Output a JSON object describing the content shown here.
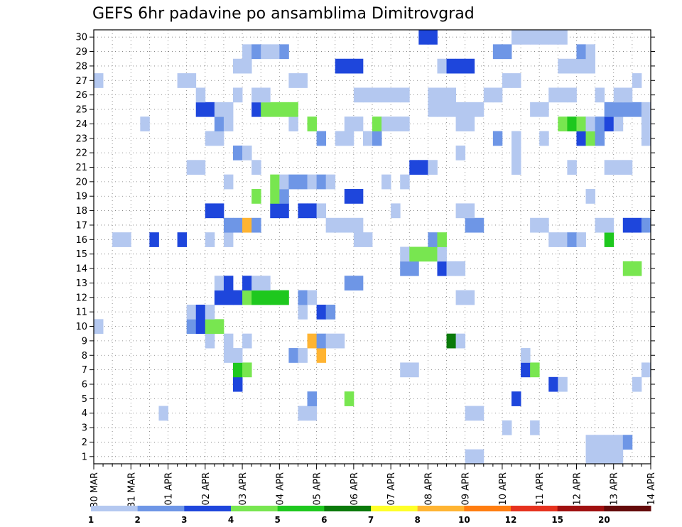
{
  "chart_data": {
    "type": "heatmap",
    "title": "GEFS 6hr padavine po ansamblima Dimitrovgrad",
    "x_tick_labels": [
      "30 MAR",
      "31 MAR",
      "01 APR",
      "02 APR",
      "03 APR",
      "04 APR",
      "05 APR",
      "06 APR",
      "07 APR",
      "08 APR",
      "09 APR",
      "10 APR",
      "11 APR",
      "12 APR",
      "13 APR",
      "14 APR"
    ],
    "y_tick_labels": [
      "1",
      "2",
      "3",
      "4",
      "5",
      "6",
      "7",
      "8",
      "9",
      "10",
      "11",
      "12",
      "13",
      "14",
      "15",
      "16",
      "17",
      "18",
      "19",
      "20",
      "21",
      "22",
      "23",
      "24",
      "25",
      "26",
      "27",
      "28",
      "29",
      "30"
    ],
    "x_range_steps": [
      0,
      60
    ],
    "steps_per_day": 4,
    "y_range": [
      0,
      30
    ],
    "grid": "dotted",
    "colorbar_position": "bottom",
    "colorbar_colors": [
      "#b4c8f0",
      "#6e96e6",
      "#1e46dc",
      "#78e650",
      "#1ec81e",
      "#0a7a0a",
      "#ffff28",
      "#ffb432",
      "#ff7d10",
      "#e6321e",
      "#a01010",
      "#640a0a"
    ],
    "colorbar_labels": [
      "1",
      "2",
      "3",
      "4",
      "5",
      "6",
      "7",
      "8",
      "10",
      "12",
      "15",
      "20"
    ],
    "cells": [
      [
        40,
        0,
        1
      ],
      [
        41,
        0,
        1
      ],
      [
        53,
        0,
        1
      ],
      [
        54,
        0,
        1
      ],
      [
        55,
        0,
        1
      ],
      [
        56,
        0,
        1
      ],
      [
        53,
        1,
        1
      ],
      [
        54,
        1,
        1
      ],
      [
        55,
        1,
        1
      ],
      [
        56,
        1,
        1
      ],
      [
        57,
        1,
        2
      ],
      [
        44,
        2,
        1
      ],
      [
        47,
        2,
        1
      ],
      [
        7,
        3,
        1
      ],
      [
        22,
        3,
        1
      ],
      [
        23,
        3,
        1
      ],
      [
        40,
        3,
        1
      ],
      [
        41,
        3,
        1
      ],
      [
        23,
        4,
        2
      ],
      [
        27,
        4,
        4
      ],
      [
        45,
        4,
        3
      ],
      [
        15,
        5,
        3
      ],
      [
        49,
        5,
        3
      ],
      [
        50,
        5,
        1
      ],
      [
        58,
        5,
        1
      ],
      [
        15,
        6,
        5
      ],
      [
        16,
        6,
        4
      ],
      [
        33,
        6,
        1
      ],
      [
        34,
        6,
        1
      ],
      [
        46,
        6,
        3
      ],
      [
        47,
        6,
        4
      ],
      [
        59,
        6,
        1
      ],
      [
        14,
        7,
        1
      ],
      [
        15,
        7,
        1
      ],
      [
        21,
        7,
        2
      ],
      [
        22,
        7,
        1
      ],
      [
        24,
        7,
        8
      ],
      [
        46,
        7,
        1
      ],
      [
        12,
        8,
        1
      ],
      [
        14,
        8,
        1
      ],
      [
        16,
        8,
        1
      ],
      [
        23,
        8,
        8
      ],
      [
        24,
        8,
        2
      ],
      [
        25,
        8,
        1
      ],
      [
        26,
        8,
        1
      ],
      [
        38,
        8,
        6
      ],
      [
        39,
        8,
        1
      ],
      [
        0,
        9,
        1
      ],
      [
        10,
        9,
        2
      ],
      [
        11,
        9,
        3
      ],
      [
        12,
        9,
        4
      ],
      [
        13,
        9,
        4
      ],
      [
        10,
        10,
        1
      ],
      [
        11,
        10,
        3
      ],
      [
        12,
        10,
        1
      ],
      [
        22,
        10,
        1
      ],
      [
        24,
        10,
        3
      ],
      [
        25,
        10,
        2
      ],
      [
        13,
        11,
        3
      ],
      [
        14,
        11,
        3
      ],
      [
        15,
        11,
        3
      ],
      [
        16,
        11,
        4
      ],
      [
        17,
        11,
        5
      ],
      [
        18,
        11,
        5
      ],
      [
        19,
        11,
        5
      ],
      [
        20,
        11,
        5
      ],
      [
        22,
        11,
        2
      ],
      [
        23,
        11,
        1
      ],
      [
        39,
        11,
        1
      ],
      [
        40,
        11,
        1
      ],
      [
        13,
        12,
        1
      ],
      [
        14,
        12,
        3
      ],
      [
        16,
        12,
        3
      ],
      [
        17,
        12,
        1
      ],
      [
        18,
        12,
        1
      ],
      [
        27,
        12,
        2
      ],
      [
        28,
        12,
        2
      ],
      [
        33,
        13,
        2
      ],
      [
        34,
        13,
        2
      ],
      [
        37,
        13,
        3
      ],
      [
        38,
        13,
        1
      ],
      [
        39,
        13,
        1
      ],
      [
        57,
        13,
        4
      ],
      [
        58,
        13,
        4
      ],
      [
        33,
        14,
        1
      ],
      [
        34,
        14,
        4
      ],
      [
        35,
        14,
        4
      ],
      [
        36,
        14,
        4
      ],
      [
        37,
        14,
        1
      ],
      [
        2,
        15,
        1
      ],
      [
        3,
        15,
        1
      ],
      [
        6,
        15,
        3
      ],
      [
        9,
        15,
        3
      ],
      [
        12,
        15,
        1
      ],
      [
        14,
        15,
        1
      ],
      [
        28,
        15,
        1
      ],
      [
        29,
        15,
        1
      ],
      [
        36,
        15,
        2
      ],
      [
        37,
        15,
        4
      ],
      [
        49,
        15,
        1
      ],
      [
        50,
        15,
        1
      ],
      [
        51,
        15,
        2
      ],
      [
        52,
        15,
        1
      ],
      [
        55,
        15,
        5
      ],
      [
        14,
        16,
        2
      ],
      [
        15,
        16,
        2
      ],
      [
        16,
        16,
        8
      ],
      [
        17,
        16,
        2
      ],
      [
        25,
        16,
        1
      ],
      [
        26,
        16,
        1
      ],
      [
        27,
        16,
        1
      ],
      [
        28,
        16,
        1
      ],
      [
        40,
        16,
        2
      ],
      [
        41,
        16,
        2
      ],
      [
        47,
        16,
        1
      ],
      [
        48,
        16,
        1
      ],
      [
        54,
        16,
        1
      ],
      [
        55,
        16,
        1
      ],
      [
        57,
        16,
        3
      ],
      [
        58,
        16,
        3
      ],
      [
        59,
        16,
        2
      ],
      [
        12,
        17,
        3
      ],
      [
        13,
        17,
        3
      ],
      [
        19,
        17,
        3
      ],
      [
        20,
        17,
        3
      ],
      [
        22,
        17,
        3
      ],
      [
        23,
        17,
        3
      ],
      [
        24,
        17,
        1
      ],
      [
        32,
        17,
        1
      ],
      [
        39,
        17,
        1
      ],
      [
        40,
        17,
        1
      ],
      [
        17,
        18,
        4
      ],
      [
        19,
        18,
        4
      ],
      [
        20,
        18,
        2
      ],
      [
        27,
        18,
        3
      ],
      [
        28,
        18,
        3
      ],
      [
        53,
        18,
        1
      ],
      [
        14,
        19,
        1
      ],
      [
        19,
        19,
        4
      ],
      [
        20,
        19,
        1
      ],
      [
        21,
        19,
        2
      ],
      [
        22,
        19,
        2
      ],
      [
        23,
        19,
        1
      ],
      [
        24,
        19,
        2
      ],
      [
        25,
        19,
        1
      ],
      [
        31,
        19,
        1
      ],
      [
        33,
        19,
        1
      ],
      [
        10,
        20,
        1
      ],
      [
        11,
        20,
        1
      ],
      [
        17,
        20,
        1
      ],
      [
        34,
        20,
        3
      ],
      [
        35,
        20,
        3
      ],
      [
        36,
        20,
        1
      ],
      [
        45,
        20,
        1
      ],
      [
        51,
        20,
        1
      ],
      [
        55,
        20,
        1
      ],
      [
        56,
        20,
        1
      ],
      [
        57,
        20,
        1
      ],
      [
        15,
        21,
        2
      ],
      [
        16,
        21,
        1
      ],
      [
        39,
        21,
        1
      ],
      [
        45,
        21,
        1
      ],
      [
        12,
        22,
        1
      ],
      [
        13,
        22,
        1
      ],
      [
        24,
        22,
        2
      ],
      [
        26,
        22,
        1
      ],
      [
        27,
        22,
        1
      ],
      [
        29,
        22,
        1
      ],
      [
        30,
        22,
        2
      ],
      [
        43,
        22,
        2
      ],
      [
        45,
        22,
        1
      ],
      [
        48,
        22,
        1
      ],
      [
        52,
        22,
        3
      ],
      [
        53,
        22,
        4
      ],
      [
        54,
        22,
        2
      ],
      [
        59,
        22,
        1
      ],
      [
        5,
        23,
        1
      ],
      [
        13,
        23,
        2
      ],
      [
        14,
        23,
        1
      ],
      [
        21,
        23,
        1
      ],
      [
        23,
        23,
        4
      ],
      [
        27,
        23,
        1
      ],
      [
        28,
        23,
        1
      ],
      [
        30,
        23,
        4
      ],
      [
        31,
        23,
        1
      ],
      [
        32,
        23,
        1
      ],
      [
        33,
        23,
        1
      ],
      [
        39,
        23,
        1
      ],
      [
        40,
        23,
        1
      ],
      [
        50,
        23,
        4
      ],
      [
        51,
        23,
        5
      ],
      [
        52,
        23,
        4
      ],
      [
        53,
        23,
        1
      ],
      [
        54,
        23,
        2
      ],
      [
        55,
        23,
        3
      ],
      [
        56,
        23,
        1
      ],
      [
        59,
        23,
        1
      ],
      [
        11,
        24,
        3
      ],
      [
        12,
        24,
        3
      ],
      [
        13,
        24,
        1
      ],
      [
        14,
        24,
        1
      ],
      [
        17,
        24,
        3
      ],
      [
        18,
        24,
        4
      ],
      [
        19,
        24,
        4
      ],
      [
        20,
        24,
        4
      ],
      [
        21,
        24,
        4
      ],
      [
        36,
        24,
        1
      ],
      [
        37,
        24,
        1
      ],
      [
        38,
        24,
        1
      ],
      [
        39,
        24,
        1
      ],
      [
        40,
        24,
        1
      ],
      [
        41,
        24,
        1
      ],
      [
        47,
        24,
        1
      ],
      [
        48,
        24,
        1
      ],
      [
        55,
        24,
        2
      ],
      [
        56,
        24,
        2
      ],
      [
        57,
        24,
        2
      ],
      [
        58,
        24,
        2
      ],
      [
        59,
        24,
        1
      ],
      [
        11,
        25,
        1
      ],
      [
        15,
        25,
        1
      ],
      [
        17,
        25,
        1
      ],
      [
        18,
        25,
        1
      ],
      [
        28,
        25,
        1
      ],
      [
        29,
        25,
        1
      ],
      [
        30,
        25,
        1
      ],
      [
        31,
        25,
        1
      ],
      [
        32,
        25,
        1
      ],
      [
        33,
        25,
        1
      ],
      [
        36,
        25,
        1
      ],
      [
        37,
        25,
        1
      ],
      [
        38,
        25,
        1
      ],
      [
        42,
        25,
        1
      ],
      [
        43,
        25,
        1
      ],
      [
        49,
        25,
        1
      ],
      [
        50,
        25,
        1
      ],
      [
        51,
        25,
        1
      ],
      [
        54,
        25,
        1
      ],
      [
        56,
        25,
        1
      ],
      [
        57,
        25,
        1
      ],
      [
        0,
        26,
        1
      ],
      [
        9,
        26,
        1
      ],
      [
        10,
        26,
        1
      ],
      [
        21,
        26,
        1
      ],
      [
        22,
        26,
        1
      ],
      [
        44,
        26,
        1
      ],
      [
        45,
        26,
        1
      ],
      [
        58,
        26,
        1
      ],
      [
        15,
        27,
        1
      ],
      [
        16,
        27,
        1
      ],
      [
        26,
        27,
        3
      ],
      [
        27,
        27,
        3
      ],
      [
        28,
        27,
        3
      ],
      [
        37,
        27,
        1
      ],
      [
        38,
        27,
        3
      ],
      [
        39,
        27,
        3
      ],
      [
        40,
        27,
        3
      ],
      [
        50,
        27,
        1
      ],
      [
        51,
        27,
        1
      ],
      [
        52,
        27,
        1
      ],
      [
        53,
        27,
        1
      ],
      [
        16,
        28,
        1
      ],
      [
        17,
        28,
        2
      ],
      [
        18,
        28,
        1
      ],
      [
        19,
        28,
        1
      ],
      [
        20,
        28,
        2
      ],
      [
        43,
        28,
        2
      ],
      [
        44,
        28,
        2
      ],
      [
        52,
        28,
        2
      ],
      [
        53,
        28,
        1
      ],
      [
        35,
        29,
        3
      ],
      [
        36,
        29,
        3
      ],
      [
        45,
        29,
        1
      ],
      [
        46,
        29,
        1
      ],
      [
        47,
        29,
        1
      ],
      [
        48,
        29,
        1
      ],
      [
        49,
        29,
        1
      ],
      [
        50,
        29,
        1
      ]
    ]
  }
}
